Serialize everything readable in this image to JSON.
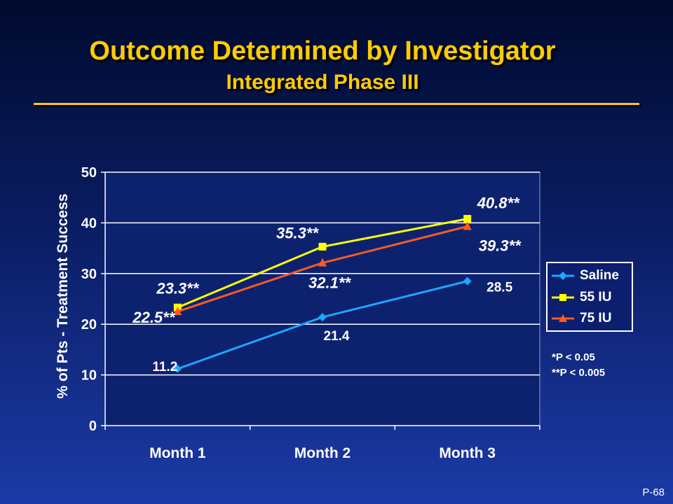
{
  "header": {
    "title": "Outcome Determined by Investigator",
    "subtitle": "Integrated Phase III"
  },
  "chart_data": {
    "type": "line",
    "categories": [
      "Month 1",
      "Month 2",
      "Month 3"
    ],
    "ylabel": "% of Pts - Treatment Success",
    "ylim": [
      0,
      50
    ],
    "yticks": [
      0,
      10,
      20,
      30,
      40,
      50
    ],
    "ytick_labels": [
      "0",
      "10",
      "20",
      "30",
      "40",
      "50"
    ],
    "grid": "horizontal",
    "legend_position": "right",
    "series": [
      {
        "name": "Saline",
        "values": [
          11.2,
          21.4,
          28.5
        ],
        "labels": [
          "11.2",
          "21.4",
          "28.5"
        ],
        "color": "#1ea7ff",
        "marker": "diamond"
      },
      {
        "name": "55 IU",
        "values": [
          23.3,
          35.3,
          40.8
        ],
        "labels": [
          "23.3**",
          "35.3**",
          "40.8**"
        ],
        "color": "#ffff00",
        "marker": "square"
      },
      {
        "name": "75 IU",
        "values": [
          22.5,
          32.1,
          39.3
        ],
        "labels": [
          "22.5**",
          "32.1**",
          "39.3**"
        ],
        "color": "#ff5a1f",
        "marker": "triangle"
      }
    ],
    "footnotes": [
      "*P < 0.05",
      "**P < 0.005"
    ]
  },
  "slide_number": "P-68"
}
